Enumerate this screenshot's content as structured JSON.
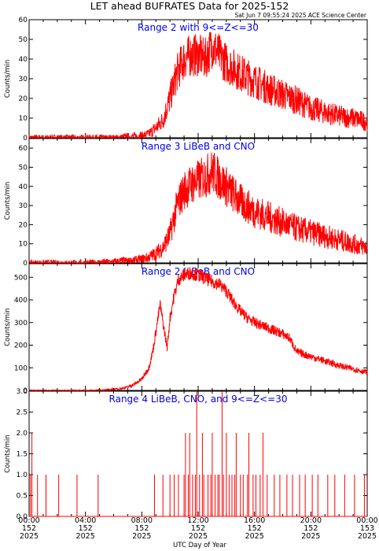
{
  "title": "LET ahead BUFRATES Data for 2025-152",
  "timestamp": "Sat Jun  7 09:55:24 2025 ACE Science Center",
  "xlabel": "UTC Day of Year",
  "colors": {
    "series": "#ff0000",
    "annotation": "#0000ee",
    "axes": "#000000"
  },
  "x_ticks": [
    {
      "line1": "00:00",
      "line2": "152",
      "line3": "2025"
    },
    {
      "line1": "04:00",
      "line2": "152",
      "line3": "2025"
    },
    {
      "line1": "08:00",
      "line2": "152",
      "line3": "2025"
    },
    {
      "line1": "12:00",
      "line2": "152",
      "line3": "2025"
    },
    {
      "line1": "16:00",
      "line2": "152",
      "line3": "2025"
    },
    {
      "line1": "20:00",
      "line2": "152",
      "line3": "2025"
    },
    {
      "line1": "00:00",
      "line2": "153",
      "line3": "2025"
    }
  ],
  "chart_data": [
    {
      "type": "line",
      "annotation": "Range 2 with 9<=Z<=30",
      "ylabel": "Counts/min",
      "ylim": [
        0,
        60
      ],
      "yticks": [
        0,
        10,
        20,
        30,
        40,
        50,
        60
      ],
      "xlim_hours": [
        0,
        24
      ],
      "series": [
        {
          "x_hours": [
            0,
            4,
            6,
            7,
            8,
            8.5,
            9,
            9.5,
            10,
            10.5,
            11,
            11.5,
            12,
            12.5,
            13,
            13.5,
            14,
            15,
            16,
            17,
            18,
            19,
            20,
            21,
            22,
            23,
            24
          ],
          "values": [
            0,
            0,
            0,
            0.5,
            1,
            2,
            5,
            9,
            20,
            33,
            40,
            42,
            42,
            40,
            47,
            42,
            38,
            33,
            29,
            25,
            22,
            19,
            15,
            13,
            11,
            10,
            8
          ]
        }
      ]
    },
    {
      "type": "line",
      "annotation": "Range 3 LiBeB and CNO",
      "ylabel": "Counts/min",
      "ylim": [
        0,
        65
      ],
      "yticks": [
        0,
        10,
        20,
        30,
        40,
        50,
        60
      ],
      "xlim_hours": [
        0,
        24
      ],
      "series": [
        {
          "x_hours": [
            0,
            4,
            6,
            7,
            8,
            8.5,
            9,
            9.5,
            10,
            10.5,
            11,
            11.5,
            12,
            12.5,
            13,
            13.5,
            14,
            15,
            16,
            17,
            18,
            19,
            20,
            21,
            22,
            23,
            24
          ],
          "values": [
            0,
            0,
            0.5,
            1,
            2,
            3,
            5,
            8,
            15,
            30,
            38,
            41,
            43,
            45,
            48,
            44,
            40,
            32,
            27,
            24,
            21,
            18,
            16,
            14,
            12,
            10,
            8
          ]
        }
      ]
    },
    {
      "type": "line",
      "annotation": "Range 2 LiBeB and CNO",
      "ylabel": "Counts/min",
      "ylim": [
        0,
        560
      ],
      "yticks": [
        0,
        100,
        200,
        300,
        400,
        500
      ],
      "xlim_hours": [
        0,
        24
      ],
      "series": [
        {
          "x_hours": [
            0,
            4,
            5.5,
            6.5,
            7,
            7.5,
            8,
            8.5,
            8.8,
            9,
            9.3,
            9.5,
            9.8,
            10,
            10.3,
            10.6,
            11,
            11.5,
            12,
            12.5,
            13,
            13.5,
            14,
            14.5,
            15,
            15.5,
            16,
            17,
            18,
            18.5,
            19,
            20,
            21,
            22,
            23,
            24
          ],
          "values": [
            0,
            0,
            2,
            8,
            15,
            28,
            50,
            100,
            180,
            260,
            380,
            300,
            190,
            320,
            420,
            490,
            510,
            520,
            510,
            495,
            480,
            470,
            440,
            390,
            350,
            320,
            300,
            275,
            250,
            230,
            170,
            150,
            130,
            110,
            95,
            80
          ]
        }
      ]
    },
    {
      "type": "line",
      "annotation": "Range 4 LiBeB, CNO, and 9<=Z<=30",
      "ylabel": "Counts/min",
      "ylim": [
        0,
        3.0
      ],
      "yticks": [
        0.0,
        0.5,
        1.0,
        1.5,
        2.0,
        2.5,
        3.0
      ],
      "xlim_hours": [
        0,
        24
      ],
      "series": [
        {
          "x_hours": [
            0.1,
            0.2,
            0.6,
            1.2,
            2.1,
            3.4,
            4.9,
            8.9,
            9.5,
            10.0,
            10.3,
            10.6,
            11.0,
            11.1,
            11.3,
            11.4,
            11.6,
            11.8,
            11.9,
            12.1,
            12.3,
            12.4,
            12.7,
            12.9,
            13.0,
            13.2,
            13.4,
            13.5,
            13.7,
            13.8,
            14.0,
            14.2,
            14.4,
            14.6,
            14.7,
            15.0,
            15.2,
            15.5,
            15.6,
            15.9,
            16.1,
            16.4,
            16.6,
            16.9,
            17.4,
            17.8,
            18.3,
            18.7,
            19.2,
            19.6,
            20.1,
            20.5,
            21.2,
            21.7,
            22.4,
            23.1,
            23.8
          ],
          "values": [
            1,
            2,
            1,
            1,
            1,
            1,
            1,
            1,
            1,
            1,
            1,
            1,
            1,
            2,
            1,
            2,
            1,
            1,
            3,
            1,
            2,
            1,
            1,
            1,
            2,
            1,
            1,
            1,
            3,
            1,
            2,
            1,
            1,
            1,
            2,
            1,
            1,
            1,
            2,
            1,
            1,
            1,
            2,
            1,
            1,
            1,
            1,
            1,
            1,
            1,
            1,
            1,
            1,
            1,
            1,
            1,
            1
          ]
        }
      ]
    }
  ]
}
